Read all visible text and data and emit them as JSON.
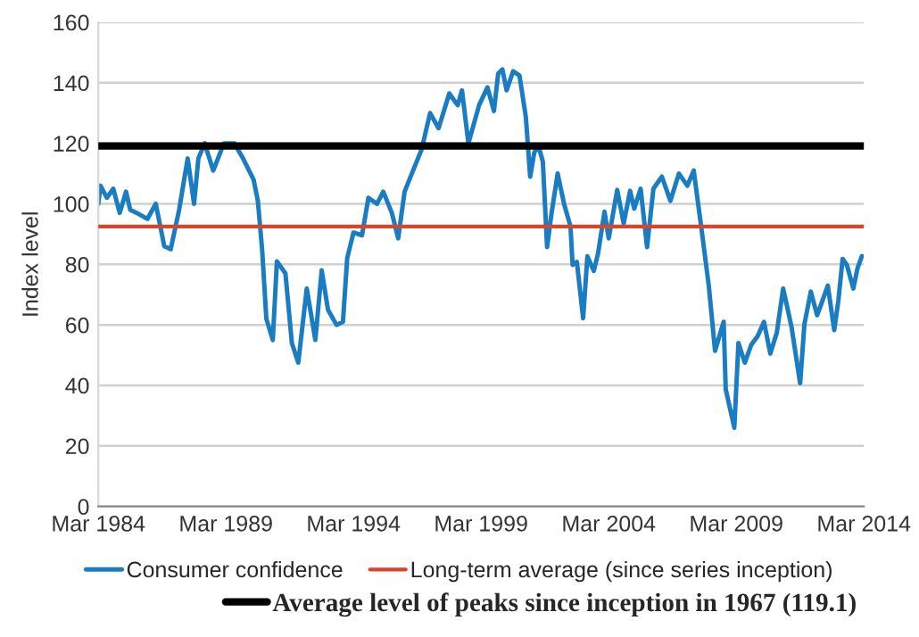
{
  "chart_data": {
    "type": "line",
    "ylabel": "Index level",
    "x": [
      "1984-03",
      "1984-04",
      "1984-07",
      "1984-10",
      "1985-01",
      "1985-04",
      "1985-06",
      "1985-09",
      "1986-02",
      "1986-06",
      "1986-10",
      "1987-01",
      "1987-05",
      "1987-09",
      "1987-12",
      "1988-02",
      "1988-05",
      "1988-09",
      "1989-02",
      "1989-07",
      "1989-11",
      "1990-04",
      "1990-06",
      "1990-08",
      "1990-10",
      "1991-01",
      "1991-03",
      "1991-07",
      "1991-10",
      "1992-01",
      "1992-05",
      "1992-09",
      "1992-12",
      "1993-03",
      "1993-07",
      "1993-10",
      "1993-12",
      "1994-03",
      "1994-07",
      "1994-10",
      "1995-02",
      "1995-05",
      "1995-09",
      "1995-12",
      "1996-03",
      "1996-07",
      "1996-11",
      "1997-03",
      "1997-07",
      "1997-12",
      "1998-04",
      "1998-06",
      "1998-09",
      "1999-02",
      "1999-06",
      "1999-09",
      "1999-11",
      "2000-01",
      "2000-03",
      "2000-06",
      "2000-09",
      "2000-12",
      "2001-02",
      "2001-04",
      "2001-06",
      "2001-08",
      "2001-10",
      "2001-12",
      "2002-03",
      "2002-06",
      "2002-09",
      "2002-10",
      "2002-12",
      "2003-03",
      "2003-05",
      "2003-08",
      "2003-10",
      "2004-01",
      "2004-03",
      "2004-07",
      "2004-10",
      "2005-01",
      "2005-03",
      "2005-06",
      "2005-09",
      "2005-12",
      "2006-04",
      "2006-08",
      "2006-12",
      "2007-04",
      "2007-07",
      "2007-11",
      "2008-02",
      "2008-05",
      "2008-09",
      "2008-10",
      "2009-02",
      "2009-04",
      "2009-07",
      "2009-10",
      "2010-01",
      "2010-04",
      "2010-07",
      "2010-10",
      "2011-01",
      "2011-05",
      "2011-09",
      "2011-11",
      "2012-02",
      "2012-05",
      "2012-07",
      "2012-10",
      "2013-01",
      "2013-03",
      "2013-05",
      "2013-07",
      "2013-10",
      "2013-12",
      "2014-02"
    ],
    "series": [
      {
        "name": "Consumer confidence",
        "color": "#1a7cc1",
        "values": [
          100,
          106,
          102,
          105,
          97,
          104,
          98,
          97,
          95,
          100,
          86,
          85,
          98,
          115,
          100,
          115,
          120,
          111,
          120,
          120,
          115,
          108,
          101,
          85,
          62,
          55,
          81,
          77,
          54,
          47.5,
          72,
          55,
          78,
          65,
          60,
          61,
          82,
          90.5,
          89.6,
          102,
          100,
          104,
          97,
          88.6,
          104,
          111,
          118,
          130,
          125,
          136.5,
          132.6,
          137.5,
          120,
          132.6,
          138.5,
          130.7,
          143,
          144.4,
          137.5,
          143.8,
          142.4,
          128.7,
          109,
          117,
          119,
          114,
          85.7,
          96.4,
          110,
          100,
          92.5,
          79.8,
          80.8,
          62.2,
          82.7,
          77.8,
          83.7,
          97.4,
          88.6,
          104.6,
          93.5,
          104.3,
          98.4,
          105,
          85.7,
          105,
          109,
          101,
          110,
          106,
          111,
          89.6,
          73,
          51.4,
          61,
          38.7,
          26,
          54,
          47.5,
          53.4,
          56.3,
          61,
          50.5,
          57.3,
          72,
          59.3,
          40.7,
          60.2,
          71,
          63.2,
          67,
          73,
          58.3,
          68,
          81.8,
          79.8,
          72,
          78.8,
          82.7
        ]
      }
    ],
    "ref_lines": [
      {
        "axis": "y",
        "value": 92.5,
        "label": "Long-term average (since series inception)",
        "color": "#d9442b"
      },
      {
        "axis": "y",
        "value": 119.1,
        "label": "Average level of peaks since inception in 1967 (119.1)",
        "color": "#000000"
      }
    ],
    "xlim": [
      "1984-03",
      "2014-03"
    ],
    "xticks": [
      {
        "value": "1984-03",
        "label": "Mar 1984"
      },
      {
        "value": "1989-03",
        "label": "Mar 1989"
      },
      {
        "value": "1994-03",
        "label": "Mar 1994"
      },
      {
        "value": "1999-03",
        "label": "Mar 1999"
      },
      {
        "value": "2004-03",
        "label": "Mar 2004"
      },
      {
        "value": "2009-03",
        "label": "Mar 2009"
      },
      {
        "value": "2014-03",
        "label": "Mar 2014"
      }
    ],
    "ylim": [
      0,
      160
    ],
    "yticks": [
      0,
      20,
      40,
      60,
      80,
      100,
      120,
      140,
      160
    ],
    "grid": "y",
    "legend": "bottom",
    "line_style": "solid"
  }
}
